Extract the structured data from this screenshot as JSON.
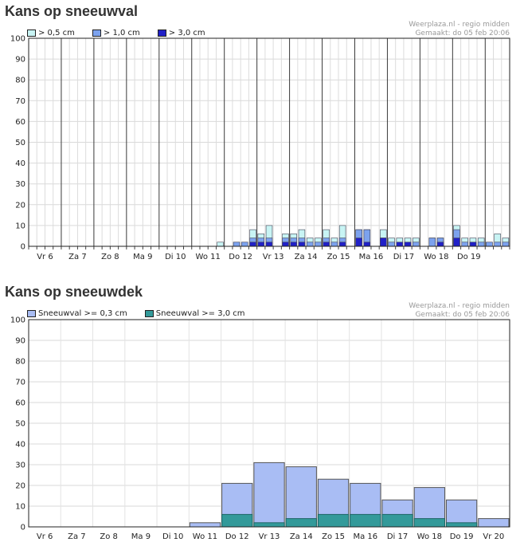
{
  "charts": [
    {
      "title": "Kans op sneeuwval",
      "source": "Weerplaza.nl - regio midden",
      "made": "Gemaakt: do 05 feb 20:06",
      "chart_data": {
        "type": "bar",
        "stacked": true,
        "ylim": [
          0,
          100
        ],
        "yticks": [
          0,
          10,
          20,
          30,
          40,
          50,
          60,
          70,
          80,
          90,
          100
        ],
        "grid": true,
        "legend_position": "top-left",
        "x_unit": "6-hour step from start of Vr 6",
        "day_labels": [
          "Vr 6",
          "Za 7",
          "Zo 8",
          "Ma 9",
          "Di 10",
          "Wo 11",
          "Do 12",
          "Vr 13",
          "Za 14",
          "Zo 15",
          "Ma 16",
          "Di 17",
          "Wo 18",
          "Do 19"
        ],
        "series": [
          {
            "name": "> 0,5 cm",
            "color": "#c8f4f4",
            "values": [
              0,
              0,
              0,
              0,
              0,
              0,
              0,
              0,
              0,
              0,
              0,
              0,
              0,
              0,
              0,
              0,
              0,
              0,
              0,
              0,
              0,
              0,
              0,
              2,
              0,
              2,
              2,
              8,
              6,
              10,
              0,
              6,
              6,
              8,
              4,
              4,
              8,
              4,
              10,
              0,
              8,
              8,
              0,
              8,
              4,
              4,
              4,
              4,
              0,
              4,
              4,
              0,
              10,
              4,
              4,
              4,
              2,
              6,
              4
            ]
          },
          {
            "name": "> 1,0 cm",
            "color": "#7ca2ee",
            "values": [
              0,
              0,
              0,
              0,
              0,
              0,
              0,
              0,
              0,
              0,
              0,
              0,
              0,
              0,
              0,
              0,
              0,
              0,
              0,
              0,
              0,
              0,
              0,
              0,
              0,
              2,
              2,
              4,
              4,
              4,
              0,
              4,
              4,
              4,
              2,
              2,
              4,
              2,
              4,
              0,
              8,
              8,
              0,
              4,
              2,
              2,
              2,
              2,
              0,
              4,
              4,
              0,
              8,
              2,
              2,
              2,
              2,
              2,
              2
            ]
          },
          {
            "name": "> 3,0 cm",
            "color": "#2020c8",
            "values": [
              0,
              0,
              0,
              0,
              0,
              0,
              0,
              0,
              0,
              0,
              0,
              0,
              0,
              0,
              0,
              0,
              0,
              0,
              0,
              0,
              0,
              0,
              0,
              0,
              0,
              0,
              0,
              2,
              2,
              2,
              0,
              2,
              2,
              2,
              0,
              0,
              2,
              0,
              2,
              0,
              4,
              2,
              0,
              4,
              0,
              2,
              2,
              0,
              0,
              0,
              2,
              0,
              4,
              0,
              2,
              0,
              0,
              0,
              0
            ]
          }
        ]
      }
    },
    {
      "title": "Kans op sneeuwdek",
      "source": "Weerplaza.nl - regio midden",
      "made": "Gemaakt: do 05 feb 20:06",
      "chart_data": {
        "type": "bar",
        "ylim": [
          0,
          100
        ],
        "yticks": [
          0,
          10,
          20,
          30,
          40,
          50,
          60,
          70,
          80,
          90,
          100
        ],
        "grid": true,
        "legend_position": "top-left",
        "categories": [
          "Vr 6",
          "Za 7",
          "Zo 8",
          "Ma 9",
          "Di 10",
          "Wo 11",
          "Do 12",
          "Vr 13",
          "Za 14",
          "Zo 15",
          "Ma 16",
          "Di 17",
          "Wo 18",
          "Do 19",
          "Vr 20"
        ],
        "series": [
          {
            "name": "Sneeuwval >= 0,3 cm",
            "color": "#a9bdf4",
            "values": [
              0,
              0,
              0,
              0,
              0,
              2,
              21,
              31,
              29,
              23,
              21,
              13,
              19,
              13,
              4
            ]
          },
          {
            "name": "Sneeuwval >= 3,0 cm",
            "color": "#339a9a",
            "values": [
              0,
              0,
              0,
              0,
              0,
              0,
              6,
              2,
              4,
              6,
              6,
              6,
              4,
              2,
              0
            ]
          }
        ]
      }
    }
  ]
}
